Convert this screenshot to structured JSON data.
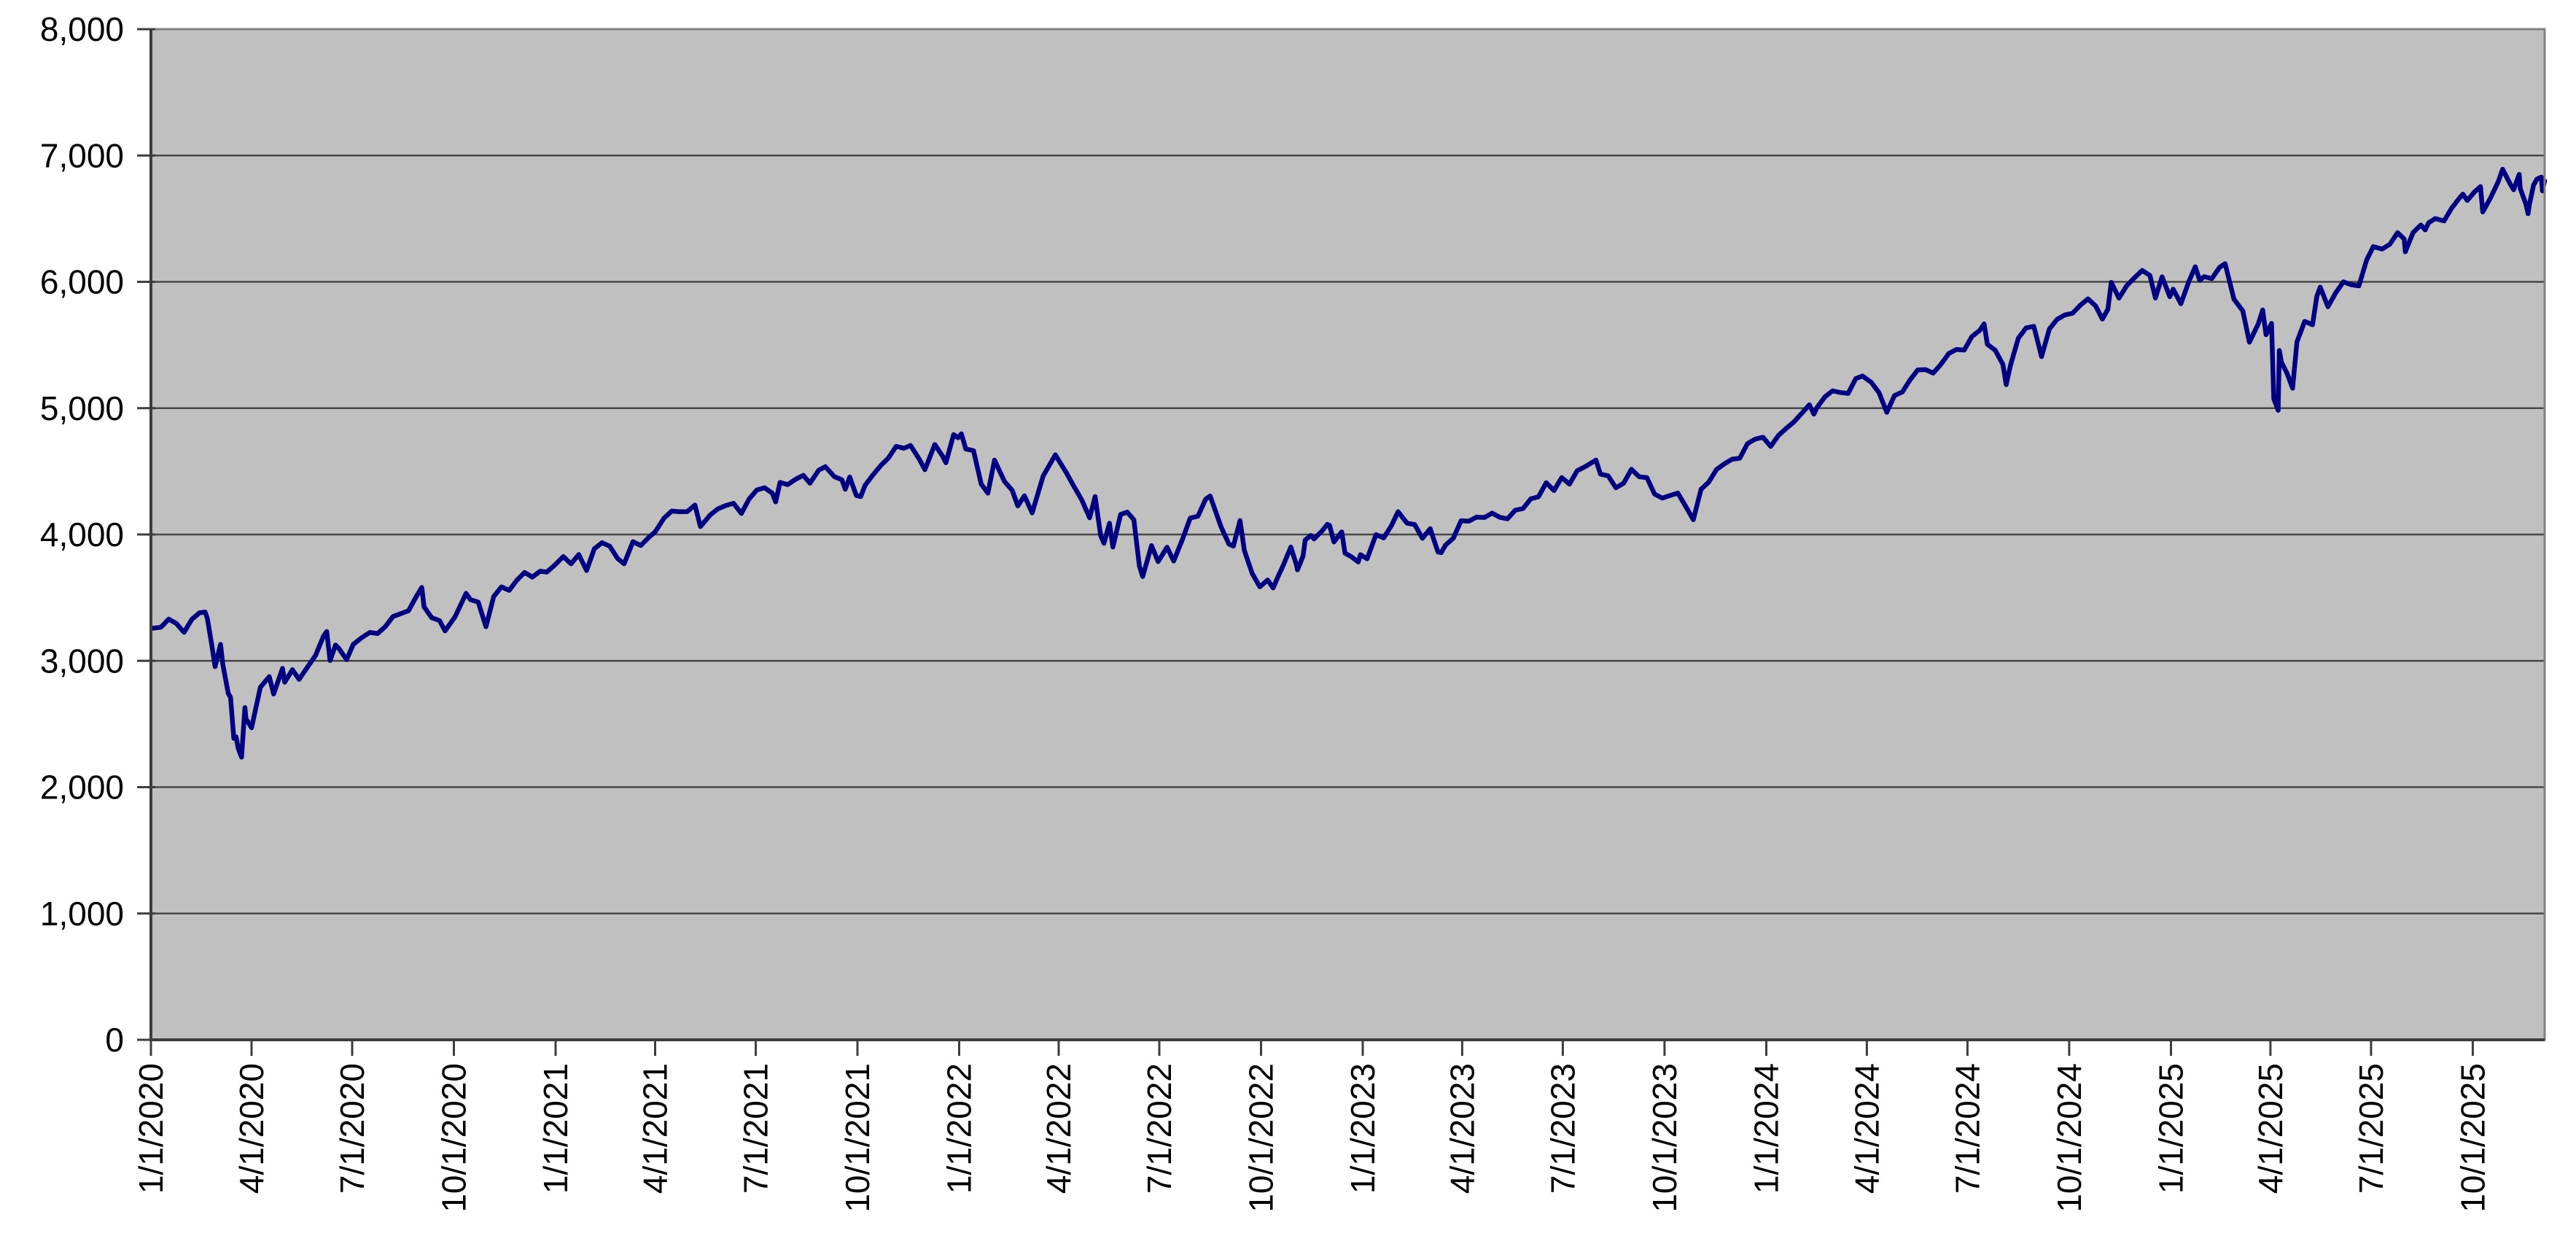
{
  "window": {
    "background": "#ffffff"
  },
  "chart": {
    "plot_background": "#c0c0c0",
    "plot_border_color": "#808080",
    "gridline_color": "#474747",
    "axis_color": "#3d3d3d",
    "label_color": "#000000",
    "series_color": "#000080",
    "series_width": 6.5,
    "font_size": 46
  },
  "chart_data": {
    "type": "line",
    "title": "",
    "grid": true,
    "legend": false,
    "ylim": [
      0,
      8000
    ],
    "y_ticks": [
      0,
      1000,
      2000,
      3000,
      4000,
      5000,
      6000,
      7000,
      8000
    ],
    "y_tick_labels": [
      "0",
      "1,000",
      "2,000",
      "3,000",
      "4,000",
      "5,000",
      "6,000",
      "7,000",
      "8,000"
    ],
    "x_tick_labels": [
      "1/1/2020",
      "4/1/2020",
      "7/1/2020",
      "10/1/2020",
      "1/1/2021",
      "4/1/2021",
      "7/1/2021",
      "10/1/2021",
      "1/1/2022",
      "4/1/2022",
      "7/1/2022",
      "10/1/2022",
      "1/1/2023",
      "4/1/2023",
      "7/1/2023",
      "10/1/2023",
      "1/1/2024",
      "4/1/2024",
      "7/1/2024",
      "10/1/2024",
      "1/1/2025",
      "4/1/2025",
      "7/1/2025",
      "10/1/2025"
    ],
    "points": [
      [
        "1/2/2020",
        3258
      ],
      [
        "1/10/2020",
        3265
      ],
      [
        "1/17/2020",
        3330
      ],
      [
        "1/24/2020",
        3295
      ],
      [
        "1/31/2020",
        3226
      ],
      [
        "2/7/2020",
        3328
      ],
      [
        "2/14/2020",
        3380
      ],
      [
        "2/19/2020",
        3386
      ],
      [
        "2/21/2020",
        3338
      ],
      [
        "2/25/2020",
        3128
      ],
      [
        "2/28/2020",
        2954
      ],
      [
        "3/4/2020",
        3130
      ],
      [
        "3/6/2020",
        2972
      ],
      [
        "3/11/2020",
        2741
      ],
      [
        "3/13/2020",
        2711
      ],
      [
        "3/16/2020",
        2386
      ],
      [
        "3/18/2020",
        2398
      ],
      [
        "3/20/2020",
        2305
      ],
      [
        "3/23/2020",
        2237
      ],
      [
        "3/26/2020",
        2630
      ],
      [
        "3/27/2020",
        2541
      ],
      [
        "4/1/2020",
        2470
      ],
      [
        "4/9/2020",
        2790
      ],
      [
        "4/17/2020",
        2875
      ],
      [
        "4/21/2020",
        2737
      ],
      [
        "4/29/2020",
        2940
      ],
      [
        "5/1/2020",
        2831
      ],
      [
        "5/8/2020",
        2930
      ],
      [
        "5/14/2020",
        2853
      ],
      [
        "5/22/2020",
        2955
      ],
      [
        "5/29/2020",
        3044
      ],
      [
        "6/5/2020",
        3194
      ],
      [
        "6/8/2020",
        3232
      ],
      [
        "6/11/2020",
        3002
      ],
      [
        "6/16/2020",
        3125
      ],
      [
        "6/19/2020",
        3098
      ],
      [
        "6/26/2020",
        3009
      ],
      [
        "7/2/2020",
        3130
      ],
      [
        "7/10/2020",
        3185
      ],
      [
        "7/17/2020",
        3225
      ],
      [
        "7/24/2020",
        3216
      ],
      [
        "7/31/2020",
        3271
      ],
      [
        "8/7/2020",
        3351
      ],
      [
        "8/14/2020",
        3373
      ],
      [
        "8/21/2020",
        3397
      ],
      [
        "8/28/2020",
        3508
      ],
      [
        "9/2/2020",
        3581
      ],
      [
        "9/4/2020",
        3427
      ],
      [
        "9/11/2020",
        3341
      ],
      [
        "9/18/2020",
        3319
      ],
      [
        "9/23/2020",
        3237
      ],
      [
        "10/2/2020",
        3348
      ],
      [
        "10/9/2020",
        3477
      ],
      [
        "10/12/2020",
        3534
      ],
      [
        "10/16/2020",
        3484
      ],
      [
        "10/23/2020",
        3465
      ],
      [
        "10/30/2020",
        3270
      ],
      [
        "11/6/2020",
        3509
      ],
      [
        "11/13/2020",
        3585
      ],
      [
        "11/20/2020",
        3558
      ],
      [
        "11/27/2020",
        3638
      ],
      [
        "12/4/2020",
        3699
      ],
      [
        "12/11/2020",
        3663
      ],
      [
        "12/18/2020",
        3709
      ],
      [
        "12/24/2020",
        3703
      ],
      [
        "12/31/2020",
        3756
      ],
      [
        "1/8/2021",
        3825
      ],
      [
        "1/15/2021",
        3768
      ],
      [
        "1/22/2021",
        3841
      ],
      [
        "1/29/2021",
        3714
      ],
      [
        "2/5/2021",
        3887
      ],
      [
        "2/12/2021",
        3935
      ],
      [
        "2/19/2021",
        3907
      ],
      [
        "2/26/2021",
        3811
      ],
      [
        "3/4/2021",
        3768
      ],
      [
        "3/12/2021",
        3943
      ],
      [
        "3/19/2021",
        3913
      ],
      [
        "3/26/2021",
        3975
      ],
      [
        "4/1/2021",
        4020
      ],
      [
        "4/9/2021",
        4129
      ],
      [
        "4/16/2021",
        4185
      ],
      [
        "4/23/2021",
        4180
      ],
      [
        "4/30/2021",
        4181
      ],
      [
        "5/7/2021",
        4233
      ],
      [
        "5/12/2021",
        4063
      ],
      [
        "5/21/2021",
        4156
      ],
      [
        "5/28/2021",
        4204
      ],
      [
        "6/4/2021",
        4230
      ],
      [
        "6/11/2021",
        4247
      ],
      [
        "6/18/2021",
        4166
      ],
      [
        "6/25/2021",
        4281
      ],
      [
        "7/2/2021",
        4352
      ],
      [
        "7/9/2021",
        4370
      ],
      [
        "7/16/2021",
        4327
      ],
      [
        "7/19/2021",
        4258
      ],
      [
        "7/23/2021",
        4412
      ],
      [
        "7/30/2021",
        4395
      ],
      [
        "8/6/2021",
        4437
      ],
      [
        "8/13/2021",
        4468
      ],
      [
        "8/19/2021",
        4406
      ],
      [
        "8/27/2021",
        4509
      ],
      [
        "9/2/2021",
        4537
      ],
      [
        "9/10/2021",
        4459
      ],
      [
        "9/17/2021",
        4433
      ],
      [
        "9/20/2021",
        4358
      ],
      [
        "9/24/2021",
        4455
      ],
      [
        "9/30/2021",
        4308
      ],
      [
        "10/4/2021",
        4300
      ],
      [
        "10/8/2021",
        4391
      ],
      [
        "10/15/2021",
        4471
      ],
      [
        "10/22/2021",
        4545
      ],
      [
        "10/29/2021",
        4605
      ],
      [
        "11/5/2021",
        4698
      ],
      [
        "11/12/2021",
        4683
      ],
      [
        "11/18/2021",
        4705
      ],
      [
        "11/26/2021",
        4595
      ],
      [
        "12/1/2021",
        4513
      ],
      [
        "12/10/2021",
        4712
      ],
      [
        "12/17/2021",
        4621
      ],
      [
        "12/20/2021",
        4568
      ],
      [
        "12/27/2021",
        4791
      ],
      [
        "12/31/2021",
        4766
      ],
      [
        "1/3/2022",
        4797
      ],
      [
        "1/7/2022",
        4677
      ],
      [
        "1/14/2022",
        4663
      ],
      [
        "1/21/2022",
        4398
      ],
      [
        "1/27/2022",
        4327
      ],
      [
        "2/2/2022",
        4589
      ],
      [
        "2/11/2022",
        4419
      ],
      [
        "2/18/2022",
        4349
      ],
      [
        "2/23/2022",
        4226
      ],
      [
        "3/1/2022",
        4306
      ],
      [
        "3/8/2022",
        4171
      ],
      [
        "3/18/2022",
        4463
      ],
      [
        "3/29/2022",
        4631
      ],
      [
        "4/8/2022",
        4488
      ],
      [
        "4/14/2022",
        4393
      ],
      [
        "4/22/2022",
        4272
      ],
      [
        "4/29/2022",
        4132
      ],
      [
        "5/4/2022",
        4300
      ],
      [
        "5/9/2022",
        3991
      ],
      [
        "5/12/2022",
        3930
      ],
      [
        "5/17/2022",
        4089
      ],
      [
        "5/20/2022",
        3901
      ],
      [
        "5/27/2022",
        4158
      ],
      [
        "6/2/2022",
        4177
      ],
      [
        "6/8/2022",
        4116
      ],
      [
        "6/13/2022",
        3750
      ],
      [
        "6/16/2022",
        3667
      ],
      [
        "6/24/2022",
        3912
      ],
      [
        "6/30/2022",
        3785
      ],
      [
        "7/8/2022",
        3899
      ],
      [
        "7/14/2022",
        3790
      ],
      [
        "7/22/2022",
        3962
      ],
      [
        "7/29/2022",
        4130
      ],
      [
        "8/5/2022",
        4145
      ],
      [
        "8/12/2022",
        4280
      ],
      [
        "8/16/2022",
        4305
      ],
      [
        "8/26/2022",
        4058
      ],
      [
        "9/2/2022",
        3924
      ],
      [
        "9/6/2022",
        3908
      ],
      [
        "9/12/2022",
        4110
      ],
      [
        "9/16/2022",
        3873
      ],
      [
        "9/23/2022",
        3693
      ],
      [
        "9/30/2022",
        3586
      ],
      [
        "10/7/2022",
        3640
      ],
      [
        "10/12/2022",
        3577
      ],
      [
        "10/17/2022",
        3678
      ],
      [
        "10/21/2022",
        3753
      ],
      [
        "10/28/2022",
        3901
      ],
      [
        "11/2/2022",
        3760
      ],
      [
        "11/3/2022",
        3720
      ],
      [
        "11/8/2022",
        3828
      ],
      [
        "11/10/2022",
        3956
      ],
      [
        "11/15/2022",
        3992
      ],
      [
        "11/18/2022",
        3965
      ],
      [
        "11/25/2022",
        4026
      ],
      [
        "11/30/2022",
        4080
      ],
      [
        "12/2/2022",
        4072
      ],
      [
        "12/6/2022",
        3941
      ],
      [
        "12/13/2022",
        4020
      ],
      [
        "12/16/2022",
        3852
      ],
      [
        "12/22/2022",
        3822
      ],
      [
        "12/28/2022",
        3783
      ],
      [
        "12/30/2022",
        3840
      ],
      [
        "1/5/2023",
        3808
      ],
      [
        "1/13/2023",
        3999
      ],
      [
        "1/20/2023",
        3973
      ],
      [
        "1/27/2023",
        4071
      ],
      [
        "2/2/2023",
        4180
      ],
      [
        "2/10/2023",
        4090
      ],
      [
        "2/17/2023",
        4079
      ],
      [
        "2/24/2023",
        3970
      ],
      [
        "3/3/2023",
        4046
      ],
      [
        "3/10/2023",
        3862
      ],
      [
        "3/13/2023",
        3856
      ],
      [
        "3/17/2023",
        3917
      ],
      [
        "3/24/2023",
        3971
      ],
      [
        "3/31/2023",
        4109
      ],
      [
        "4/7/2023",
        4105
      ],
      [
        "4/14/2023",
        4138
      ],
      [
        "4/21/2023",
        4134
      ],
      [
        "4/28/2023",
        4169
      ],
      [
        "5/5/2023",
        4136
      ],
      [
        "5/12/2023",
        4124
      ],
      [
        "5/19/2023",
        4192
      ],
      [
        "5/26/2023",
        4205
      ],
      [
        "6/2/2023",
        4282
      ],
      [
        "6/9/2023",
        4299
      ],
      [
        "6/16/2023",
        4410
      ],
      [
        "6/23/2023",
        4348
      ],
      [
        "6/30/2023",
        4450
      ],
      [
        "7/7/2023",
        4399
      ],
      [
        "7/14/2023",
        4505
      ],
      [
        "7/21/2023",
        4536
      ],
      [
        "7/31/2023",
        4589
      ],
      [
        "8/4/2023",
        4478
      ],
      [
        "8/11/2023",
        4464
      ],
      [
        "8/18/2023",
        4370
      ],
      [
        "8/25/2023",
        4406
      ],
      [
        "9/1/2023",
        4516
      ],
      [
        "9/8/2023",
        4457
      ],
      [
        "9/15/2023",
        4450
      ],
      [
        "9/22/2023",
        4320
      ],
      [
        "9/29/2023",
        4288
      ],
      [
        "10/6/2023",
        4309
      ],
      [
        "10/13/2023",
        4328
      ],
      [
        "10/20/2023",
        4224
      ],
      [
        "10/27/2023",
        4117
      ],
      [
        "11/3/2023",
        4358
      ],
      [
        "11/10/2023",
        4415
      ],
      [
        "11/17/2023",
        4514
      ],
      [
        "11/24/2023",
        4559
      ],
      [
        "12/1/2023",
        4595
      ],
      [
        "12/8/2023",
        4604
      ],
      [
        "12/15/2023",
        4719
      ],
      [
        "12/22/2023",
        4755
      ],
      [
        "12/29/2023",
        4770
      ],
      [
        "1/5/2024",
        4697
      ],
      [
        "1/12/2024",
        4784
      ],
      [
        "1/19/2024",
        4840
      ],
      [
        "1/26/2024",
        4891
      ],
      [
        "2/2/2024",
        4959
      ],
      [
        "2/9/2024",
        5027
      ],
      [
        "2/13/2024",
        4953
      ],
      [
        "2/16/2024",
        5006
      ],
      [
        "2/23/2024",
        5089
      ],
      [
        "3/1/2024",
        5137
      ],
      [
        "3/8/2024",
        5124
      ],
      [
        "3/15/2024",
        5117
      ],
      [
        "3/22/2024",
        5234
      ],
      [
        "3/28/2024",
        5254
      ],
      [
        "4/5/2024",
        5204
      ],
      [
        "4/12/2024",
        5123
      ],
      [
        "4/19/2024",
        4967
      ],
      [
        "4/26/2024",
        5100
      ],
      [
        "5/3/2024",
        5128
      ],
      [
        "5/10/2024",
        5223
      ],
      [
        "5/17/2024",
        5303
      ],
      [
        "5/24/2024",
        5305
      ],
      [
        "5/31/2024",
        5278
      ],
      [
        "6/7/2024",
        5347
      ],
      [
        "6/14/2024",
        5432
      ],
      [
        "6/21/2024",
        5465
      ],
      [
        "6/28/2024",
        5460
      ],
      [
        "7/5/2024",
        5567
      ],
      [
        "7/12/2024",
        5615
      ],
      [
        "7/16/2024",
        5667
      ],
      [
        "7/19/2024",
        5505
      ],
      [
        "7/26/2024",
        5459
      ],
      [
        "8/2/2024",
        5346
      ],
      [
        "8/5/2024",
        5186
      ],
      [
        "8/9/2024",
        5344
      ],
      [
        "8/16/2024",
        5554
      ],
      [
        "8/23/2024",
        5635
      ],
      [
        "8/30/2024",
        5648
      ],
      [
        "9/6/2024",
        5408
      ],
      [
        "9/13/2024",
        5626
      ],
      [
        "9/20/2024",
        5703
      ],
      [
        "9/27/2024",
        5738
      ],
      [
        "10/4/2024",
        5751
      ],
      [
        "10/11/2024",
        5815
      ],
      [
        "10/18/2024",
        5865
      ],
      [
        "10/25/2024",
        5808
      ],
      [
        "10/31/2024",
        5705
      ],
      [
        "11/5/2024",
        5783
      ],
      [
        "11/8/2024",
        5996
      ],
      [
        "11/15/2024",
        5871
      ],
      [
        "11/22/2024",
        5969
      ],
      [
        "11/29/2024",
        6032
      ],
      [
        "12/6/2024",
        6090
      ],
      [
        "12/13/2024",
        6051
      ],
      [
        "12/18/2024",
        5872
      ],
      [
        "12/24/2024",
        6040
      ],
      [
        "12/31/2024",
        5882
      ],
      [
        "1/3/2025",
        5942
      ],
      [
        "1/10/2025",
        5827
      ],
      [
        "1/17/2025",
        5997
      ],
      [
        "1/23/2025",
        6119
      ],
      [
        "1/27/2025",
        6012
      ],
      [
        "1/31/2025",
        6041
      ],
      [
        "2/7/2025",
        6026
      ],
      [
        "2/14/2025",
        6115
      ],
      [
        "2/19/2025",
        6144
      ],
      [
        "2/27/2025",
        5862
      ],
      [
        "3/7/2025",
        5770
      ],
      [
        "3/13/2025",
        5522
      ],
      [
        "3/21/2025",
        5668
      ],
      [
        "3/25/2025",
        5777
      ],
      [
        "3/28/2025",
        5581
      ],
      [
        "4/2/2025",
        5671
      ],
      [
        "4/4/2025",
        5074
      ],
      [
        "4/8/2025",
        4983
      ],
      [
        "4/9/2025",
        5457
      ],
      [
        "4/11/2025",
        5363
      ],
      [
        "4/16/2025",
        5276
      ],
      [
        "4/21/2025",
        5158
      ],
      [
        "4/25/2025",
        5525
      ],
      [
        "5/2/2025",
        5687
      ],
      [
        "5/9/2025",
        5660
      ],
      [
        "5/13/2025",
        5886
      ],
      [
        "5/16/2025",
        5958
      ],
      [
        "5/23/2025",
        5803
      ],
      [
        "5/30/2025",
        5912
      ],
      [
        "6/6/2025",
        6000
      ],
      [
        "6/13/2025",
        5977
      ],
      [
        "6/20/2025",
        5968
      ],
      [
        "6/27/2025",
        6173
      ],
      [
        "7/3/2025",
        6279
      ],
      [
        "7/11/2025",
        6260
      ],
      [
        "7/18/2025",
        6297
      ],
      [
        "7/25/2025",
        6389
      ],
      [
        "7/31/2025",
        6339
      ],
      [
        "8/1/2025",
        6238
      ],
      [
        "8/8/2025",
        6389
      ],
      [
        "8/15/2025",
        6450
      ],
      [
        "8/19/2025",
        6411
      ],
      [
        "8/22/2025",
        6467
      ],
      [
        "8/28/2025",
        6501
      ],
      [
        "9/5/2025",
        6482
      ],
      [
        "9/12/2025",
        6584
      ],
      [
        "9/19/2025",
        6664
      ],
      [
        "9/22/2025",
        6694
      ],
      [
        "9/26/2025",
        6644
      ],
      [
        "10/3/2025",
        6716
      ],
      [
        "10/8/2025",
        6754
      ],
      [
        "10/10/2025",
        6553
      ],
      [
        "10/17/2025",
        6664
      ],
      [
        "10/24/2025",
        6792
      ],
      [
        "10/28/2025",
        6891
      ],
      [
        "10/31/2025",
        6840
      ],
      [
        "11/4/2025",
        6772
      ],
      [
        "11/7/2025",
        6729
      ],
      [
        "11/12/2025",
        6851
      ],
      [
        "11/13/2025",
        6737
      ],
      [
        "11/18/2025",
        6617
      ],
      [
        "11/20/2025",
        6539
      ],
      [
        "11/21/2025",
        6603
      ],
      [
        "11/25/2025",
        6766
      ],
      [
        "11/28/2025",
        6813
      ],
      [
        "12/2/2025",
        6829
      ],
      [
        "12/3/2025",
        6720
      ],
      [
        "12/5/2025",
        6800
      ]
    ]
  }
}
